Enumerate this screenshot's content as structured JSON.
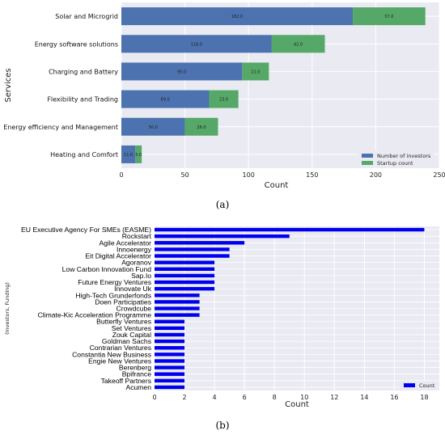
{
  "chart_data": [
    {
      "type": "bar",
      "orientation": "horizontal",
      "stacked": true,
      "caption": "(a)",
      "xlabel": "Count",
      "ylabel": "Services",
      "xlim": [
        0,
        250
      ],
      "xticks": [
        "0",
        "50",
        "100",
        "150",
        "200",
        "250"
      ],
      "grid": true,
      "legend_position": "bottom-right",
      "categories": [
        "Solar and Microgrid",
        "Energy software solutions",
        "Charging and Battery",
        "Flexibility and Trading",
        "Energy efficiency and Management",
        "Heating and Comfort"
      ],
      "series": [
        {
          "name": "Number of investors",
          "color": "#4c72b0",
          "values": [
            182,
            118,
            95,
            69,
            50,
            11
          ],
          "labels": [
            "182.0",
            "118.0",
            "95.0",
            "69.0",
            "50.0",
            "11.0"
          ]
        },
        {
          "name": "Startup count",
          "color": "#55a868",
          "values": [
            57,
            42,
            21,
            23,
            26,
            5
          ],
          "labels": [
            "57.0",
            "42.0",
            "21.0",
            "23.0",
            "26.0",
            "5.0"
          ]
        }
      ]
    },
    {
      "type": "bar",
      "orientation": "horizontal",
      "caption": "(b)",
      "xlabel": "Count",
      "ylabel": "(Investors, Funding)",
      "xlim": [
        0,
        19
      ],
      "xticks": [
        "0",
        "2",
        "4",
        "6",
        "8",
        "10",
        "12",
        "14",
        "16",
        "18"
      ],
      "grid": true,
      "legend_position": "bottom-right",
      "categories": [
        "EU Executive Agency For SMEs (EASME)",
        "Rockstart",
        "Agile Accelerator",
        "Innoenergy",
        "Eit Digital Accelerator",
        "Agoranov",
        "Low Carbon Innovation Fund",
        "Sap.Io",
        "Future Energy Ventures",
        "Innovate Uk",
        "High-Tech Grunderfonds",
        "Doen Participaties",
        "Crowdcube",
        "Climate-Kic Acceleration Programme",
        "Butterfly Ventures",
        "Set Ventures",
        "Zouk Capital",
        "Goldman Sachs",
        "Contrarian Ventures",
        "Constantia New Business",
        "Engie New Ventures",
        "Berenberg",
        "Bpifrance",
        "Takeoff Partners",
        "Acumen"
      ],
      "series": [
        {
          "name": "Count",
          "color": "#0000ee",
          "values": [
            18,
            9,
            6,
            5,
            5,
            4,
            4,
            4,
            4,
            4,
            3,
            3,
            3,
            3,
            2,
            2,
            2,
            2,
            2,
            2,
            2,
            2,
            2,
            2,
            2
          ]
        }
      ]
    }
  ]
}
